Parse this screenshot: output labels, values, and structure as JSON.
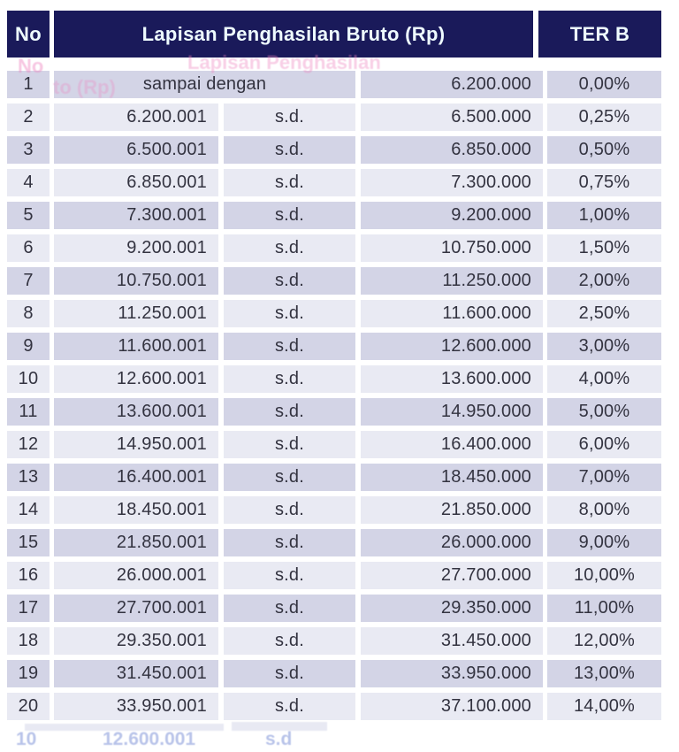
{
  "table": {
    "columns": {
      "no": "No",
      "lapisan": "Lapisan Penghasilan Bruto (Rp)",
      "ter": "TER B"
    },
    "rows": [
      {
        "no": "1",
        "from": "sampai dengan",
        "sd": "",
        "to": "6.200.000",
        "ter": "0,00%",
        "merged": true
      },
      {
        "no": "2",
        "from": "6.200.001",
        "sd": "s.d.",
        "to": "6.500.000",
        "ter": "0,25%"
      },
      {
        "no": "3",
        "from": "6.500.001",
        "sd": "s.d.",
        "to": "6.850.000",
        "ter": "0,50%"
      },
      {
        "no": "4",
        "from": "6.850.001",
        "sd": "s.d.",
        "to": "7.300.000",
        "ter": "0,75%"
      },
      {
        "no": "5",
        "from": "7.300.001",
        "sd": "s.d.",
        "to": "9.200.000",
        "ter": "1,00%"
      },
      {
        "no": "6",
        "from": "9.200.001",
        "sd": "s.d.",
        "to": "10.750.000",
        "ter": "1,50%"
      },
      {
        "no": "7",
        "from": "10.750.001",
        "sd": "s.d.",
        "to": "11.250.000",
        "ter": "2,00%"
      },
      {
        "no": "8",
        "from": "11.250.001",
        "sd": "s.d.",
        "to": "11.600.000",
        "ter": "2,50%"
      },
      {
        "no": "9",
        "from": "11.600.001",
        "sd": "s.d.",
        "to": "12.600.000",
        "ter": "3,00%"
      },
      {
        "no": "10",
        "from": "12.600.001",
        "sd": "s.d.",
        "to": "13.600.000",
        "ter": "4,00%"
      },
      {
        "no": "11",
        "from": "13.600.001",
        "sd": "s.d.",
        "to": "14.950.000",
        "ter": "5,00%"
      },
      {
        "no": "12",
        "from": "14.950.001",
        "sd": "s.d.",
        "to": "16.400.000",
        "ter": "6,00%"
      },
      {
        "no": "13",
        "from": "16.400.001",
        "sd": "s.d.",
        "to": "18.450.000",
        "ter": "7,00%"
      },
      {
        "no": "14",
        "from": "18.450.001",
        "sd": "s.d.",
        "to": "21.850.000",
        "ter": "8,00%"
      },
      {
        "no": "15",
        "from": "21.850.001",
        "sd": "s.d.",
        "to": "26.000.000",
        "ter": "9,00%"
      },
      {
        "no": "16",
        "from": "26.000.001",
        "sd": "s.d.",
        "to": "27.700.000",
        "ter": "10,00%"
      },
      {
        "no": "17",
        "from": "27.700.001",
        "sd": "s.d.",
        "to": "29.350.000",
        "ter": "11,00%"
      },
      {
        "no": "18",
        "from": "29.350.001",
        "sd": "s.d.",
        "to": "31.450.000",
        "ter": "12,00%"
      },
      {
        "no": "19",
        "from": "31.450.001",
        "sd": "s.d.",
        "to": "33.950.000",
        "ter": "13,00%"
      },
      {
        "no": "20",
        "from": "33.950.001",
        "sd": "s.d.",
        "to": "37.100.000",
        "ter": "14,00%"
      }
    ]
  },
  "chart_data": {
    "type": "table",
    "title": "Lapisan Penghasilan Bruto (Rp) - TER B",
    "columns": [
      "No",
      "Lapisan Penghasilan Bruto (Rp) - dari",
      "",
      "Lapisan Penghasilan Bruto (Rp) - sampai",
      "TER B"
    ],
    "rows_note": "see table.rows"
  },
  "colors": {
    "header_bg": "#1a1a5a",
    "header_text": "#eefbff",
    "row_dark": "#d3d4e6",
    "row_light": "#e9eaf3",
    "body_text": "#333340",
    "page_bg": "#ffffff"
  },
  "artifacts": {
    "header_ghosts": [
      "No",
      "Lapisan Penghasilan",
      "to (Rp)"
    ],
    "footer_ghosts": [
      "10",
      "12.600.001",
      "s.d"
    ]
  }
}
